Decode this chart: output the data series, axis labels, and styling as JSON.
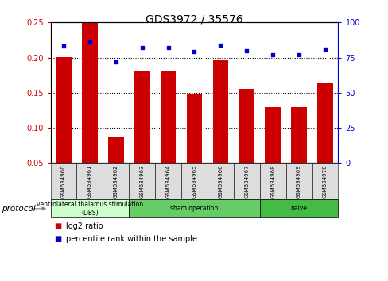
{
  "title": "GDS3972 / 35576",
  "samples": [
    "GSM634960",
    "GSM634961",
    "GSM634962",
    "GSM634963",
    "GSM634964",
    "GSM634965",
    "GSM634966",
    "GSM634967",
    "GSM634968",
    "GSM634969",
    "GSM634970"
  ],
  "log2_ratio": [
    0.201,
    0.249,
    0.088,
    0.18,
    0.181,
    0.148,
    0.197,
    0.156,
    0.13,
    0.13,
    0.165
  ],
  "percentile_rank": [
    83,
    86,
    72,
    82,
    82,
    79,
    84,
    80,
    77,
    77,
    81
  ],
  "bar_color": "#cc0000",
  "scatter_color": "#0000cc",
  "ylim_left": [
    0.05,
    0.25
  ],
  "ylim_right": [
    0,
    100
  ],
  "yticks_left": [
    0.05,
    0.1,
    0.15,
    0.2,
    0.25
  ],
  "yticks_right": [
    0,
    25,
    50,
    75,
    100
  ],
  "grid_yticks": [
    0.1,
    0.15,
    0.2
  ],
  "protocol_groups": [
    {
      "label": "ventrolateral thalamus stimulation\n(DBS)",
      "start": 0,
      "end": 3,
      "color": "#ccffcc"
    },
    {
      "label": "sham operation",
      "start": 3,
      "end": 8,
      "color": "#66cc66"
    },
    {
      "label": "naive",
      "start": 8,
      "end": 11,
      "color": "#44bb44"
    }
  ],
  "legend_bar_label": "log2 ratio",
  "legend_scatter_label": "percentile rank within the sample",
  "protocol_label": "protocol",
  "background_color": "#ffffff",
  "plot_bg_color": "#ffffff",
  "axis_left_color": "#cc0000",
  "axis_right_color": "#0000cc",
  "bar_bottom": 0.05
}
